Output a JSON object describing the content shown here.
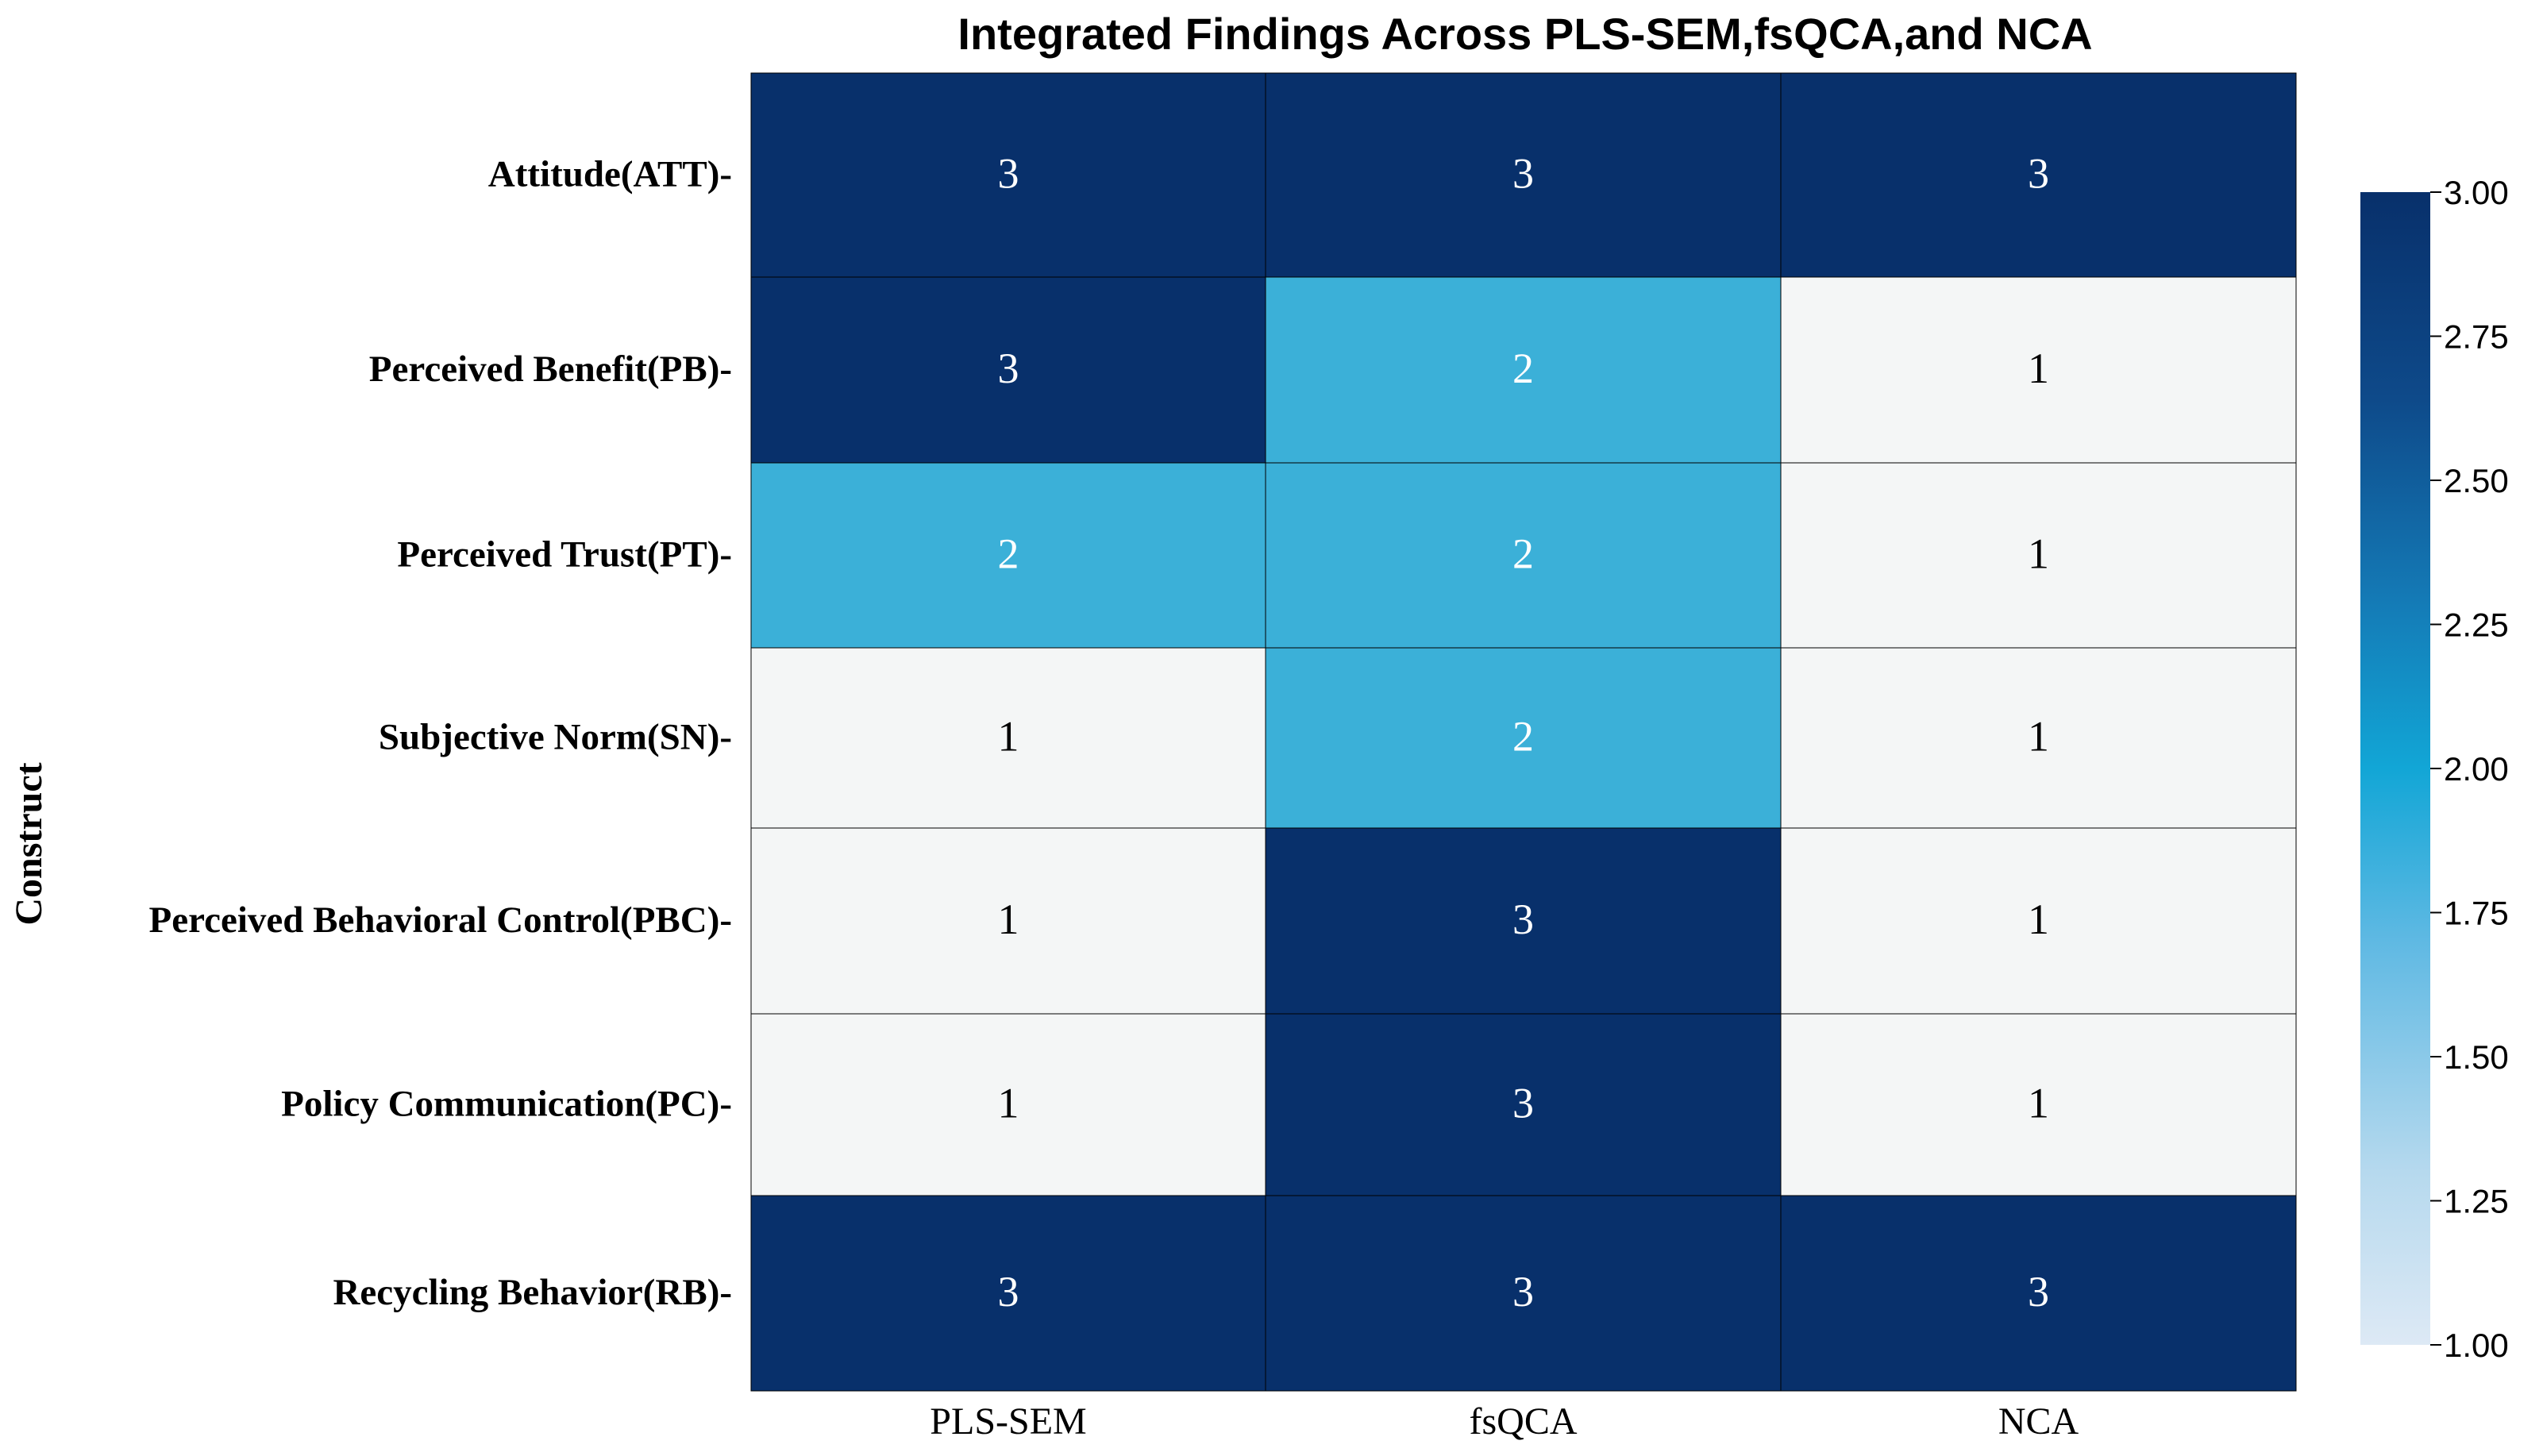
{
  "chart_data": {
    "type": "heatmap",
    "title": "Integrated Findings Across PLS-SEM,fsQCA,and NCA",
    "xlabel": "",
    "ylabel": "Construct",
    "columns": [
      "PLS-SEM",
      "fsQCA",
      "NCA"
    ],
    "rows": [
      "Attitude(ATT)",
      "Perceived Benefit(PB)",
      "Perceived Trust(PT)",
      "Subjective Norm(SN)",
      "Perceived Behavioral Control(PBC)",
      "Policy Communication(PC)",
      "Recycling Behavior(RB)"
    ],
    "values": [
      [
        3,
        3,
        3
      ],
      [
        3,
        2,
        1
      ],
      [
        2,
        2,
        1
      ],
      [
        1,
        2,
        1
      ],
      [
        1,
        3,
        1
      ],
      [
        1,
        3,
        1
      ],
      [
        3,
        3,
        3
      ]
    ],
    "annotations": true,
    "colormap": "Blues",
    "colors": {
      "3": "#08306b",
      "2": "#3bb0d8",
      "1": "#f4f6f6"
    },
    "annotation_colors": {
      "dark": "#ffffff",
      "light": "#000000"
    },
    "colorbar": {
      "range": [
        1.0,
        3.0
      ],
      "ticks": [
        "3.00",
        "2.75",
        "2.50",
        "2.25",
        "2.00",
        "1.75",
        "1.50",
        "1.25",
        "1.00"
      ]
    }
  }
}
